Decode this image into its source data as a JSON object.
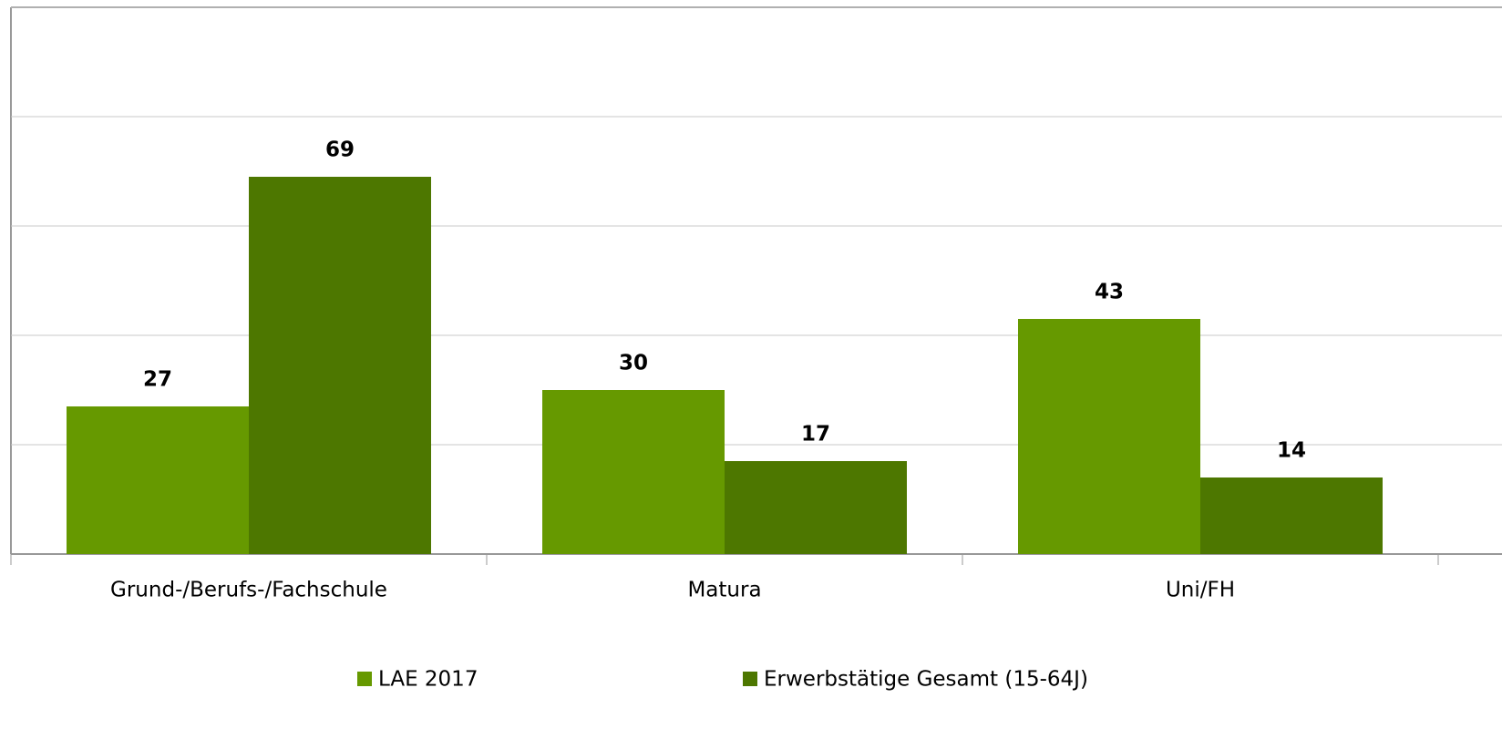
{
  "chart_data": {
    "type": "bar",
    "categories": [
      "Grund-/Berufs-/Fachschule",
      "Matura",
      "Uni/FH"
    ],
    "series": [
      {
        "name": "LAE 2017",
        "color": "#669900",
        "values": [
          27,
          30,
          43
        ]
      },
      {
        "name": "Erwerbstätige Gesamt (15-64J)",
        "color": "#4d7700",
        "values": [
          69,
          17,
          14
        ]
      }
    ],
    "ylim": [
      0,
      100
    ],
    "yticks": [
      0,
      20,
      40,
      60,
      80,
      100
    ],
    "grid": true,
    "legend": "bottom"
  }
}
